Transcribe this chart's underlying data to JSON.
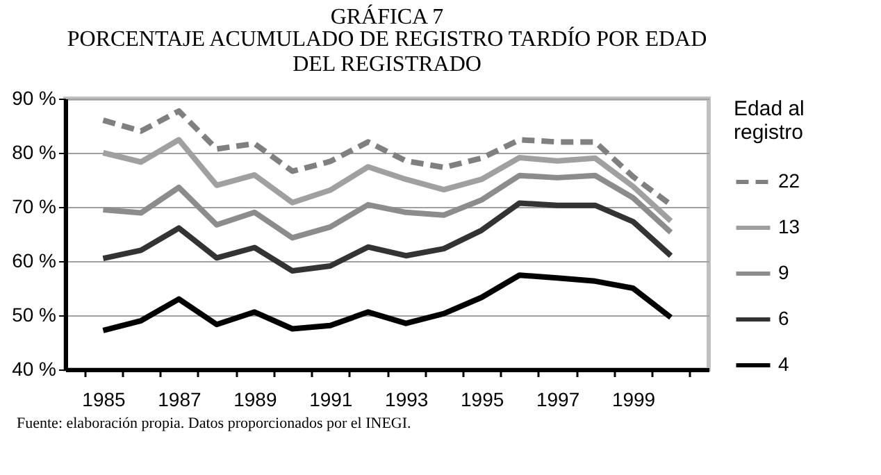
{
  "chart_data": {
    "type": "line",
    "title": "GRÁFICA 7",
    "subtitle": "PORCENTAJE ACUMULADO DE REGISTRO TARDÍO POR EDAD DEL REGISTRADO",
    "categories": [
      "1985",
      null,
      "1987",
      null,
      "1989",
      null,
      "1991",
      null,
      "1993",
      null,
      "1995",
      null,
      "1997",
      null,
      "1999",
      null
    ],
    "series": [
      {
        "name": "22",
        "color": "#808080",
        "line_style": "dashed",
        "values": [
          86.0,
          84.0,
          87.7,
          80.7,
          81.7,
          76.6,
          78.4,
          82.0,
          78.5,
          77.3,
          79.0,
          82.4,
          82.0,
          82.0,
          75.6,
          70.4
        ]
      },
      {
        "name": "13",
        "color": "#a0a0a0",
        "values": [
          80.0,
          78.3,
          82.4,
          74.0,
          75.9,
          70.8,
          73.1,
          77.4,
          75.1,
          73.2,
          75.1,
          79.1,
          78.5,
          79.0,
          73.8,
          67.4
        ]
      },
      {
        "name": "9",
        "color": "#8c8c8c",
        "values": [
          69.5,
          68.9,
          73.6,
          66.7,
          69.0,
          64.3,
          66.3,
          70.4,
          69.0,
          68.5,
          71.3,
          75.8,
          75.4,
          75.8,
          71.7,
          65.3
        ]
      },
      {
        "name": "6",
        "color": "#333333",
        "values": [
          60.5,
          62.0,
          66.1,
          60.6,
          62.5,
          58.2,
          59.1,
          62.6,
          61.0,
          62.3,
          65.7,
          70.7,
          70.3,
          70.3,
          67.3,
          61.0
        ]
      },
      {
        "name": "4",
        "color": "#000000",
        "values": [
          47.2,
          49.0,
          53.0,
          48.3,
          50.6,
          47.5,
          48.1,
          50.6,
          48.5,
          50.3,
          53.3,
          57.4,
          56.9,
          56.3,
          55.0,
          49.6
        ]
      }
    ],
    "ylim": [
      40,
      90
    ],
    "yticks": [
      {
        "value": 40,
        "label": "40 %"
      },
      {
        "value": 50,
        "label": "50 %"
      },
      {
        "value": 60,
        "label": "60 %"
      },
      {
        "value": 70,
        "label": "70 %"
      },
      {
        "value": 80,
        "label": "80 %"
      },
      {
        "value": 90,
        "label": "90 %"
      }
    ],
    "grid": "y",
    "legend": "right",
    "legend_title": "Edad al registro",
    "line_style": "solid",
    "marker": "none",
    "annotations": [
      "Fuente: elaboración propia. Datos proporcionados por el INEGI."
    ]
  }
}
